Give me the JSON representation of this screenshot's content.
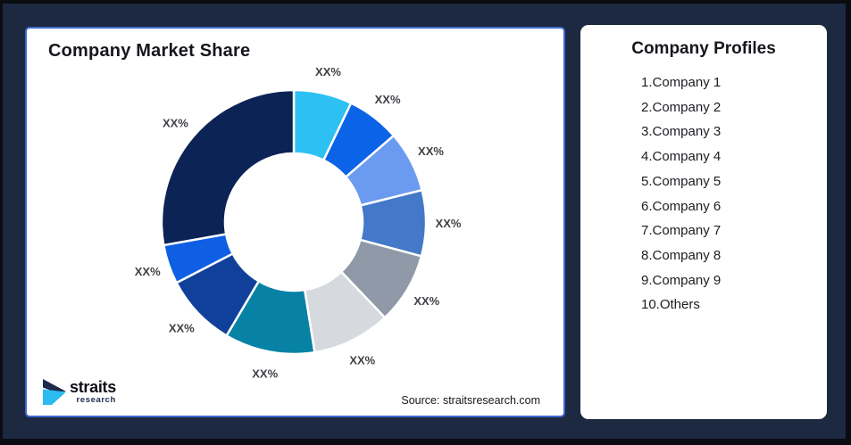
{
  "page": {
    "background_color": "#1D2841",
    "frame_border_color": "#0A0C10"
  },
  "left_card": {
    "title": "Company Market Share",
    "source": "Source: straitsresearch.com",
    "border_color": "#3E66CF",
    "logo": {
      "brand": "straits",
      "sub": "research",
      "icon_navy": "#1D2A4C",
      "icon_cyan": "#2CBBEE"
    }
  },
  "right_card": {
    "title": "Company Profiles",
    "items": [
      "1.Company 1",
      "2.Company 2",
      "3.Company 3",
      "4.Company 4",
      "5.Company 5",
      "6.Company 6",
      "7.Company 7",
      "8.Company 8",
      "9.Company 9",
      "10.Others"
    ]
  },
  "chart_data": {
    "type": "pie",
    "variant": "donut",
    "title": "Company Market Share",
    "legend_position": "none",
    "start_angle_deg": 0,
    "inner_radius_ratio": 0.52,
    "label_color": "#3F4147",
    "segment_stroke": "#ffffff",
    "segments": [
      {
        "name": "Company 1",
        "label": "XX%",
        "color": "#2CC1F2",
        "span_deg": 25.7,
        "approx_pct": 7.1
      },
      {
        "name": "Company 2",
        "label": "XX%",
        "color": "#0B63E8",
        "span_deg": 23.4,
        "approx_pct": 6.5
      },
      {
        "name": "Company 3",
        "label": "XX%",
        "color": "#6B9BF0",
        "span_deg": 26.9,
        "approx_pct": 7.5
      },
      {
        "name": "Company 4",
        "label": "XX%",
        "color": "#4478C8",
        "span_deg": 29.0,
        "approx_pct": 8.1
      },
      {
        "name": "Company 5",
        "label": "XX%",
        "color": "#9099A8",
        "span_deg": 31.4,
        "approx_pct": 8.7
      },
      {
        "name": "Company 6",
        "label": "XX%",
        "color": "#D6D9DE",
        "span_deg": 34.5,
        "approx_pct": 9.6
      },
      {
        "name": "Company 7",
        "label": "XX%",
        "color": "#0782A5",
        "span_deg": 39.7,
        "approx_pct": 11.0
      },
      {
        "name": "Company 8",
        "label": "XX%",
        "color": "#10409A",
        "span_deg": 32.0,
        "approx_pct": 8.9
      },
      {
        "name": "Company 9",
        "label": "XX%",
        "color": "#0E5FE4",
        "span_deg": 17.3,
        "approx_pct": 4.8
      },
      {
        "name": "Others",
        "label": "XX%",
        "color": "#0B2355",
        "span_deg": 100.1,
        "approx_pct": 27.8
      }
    ]
  }
}
